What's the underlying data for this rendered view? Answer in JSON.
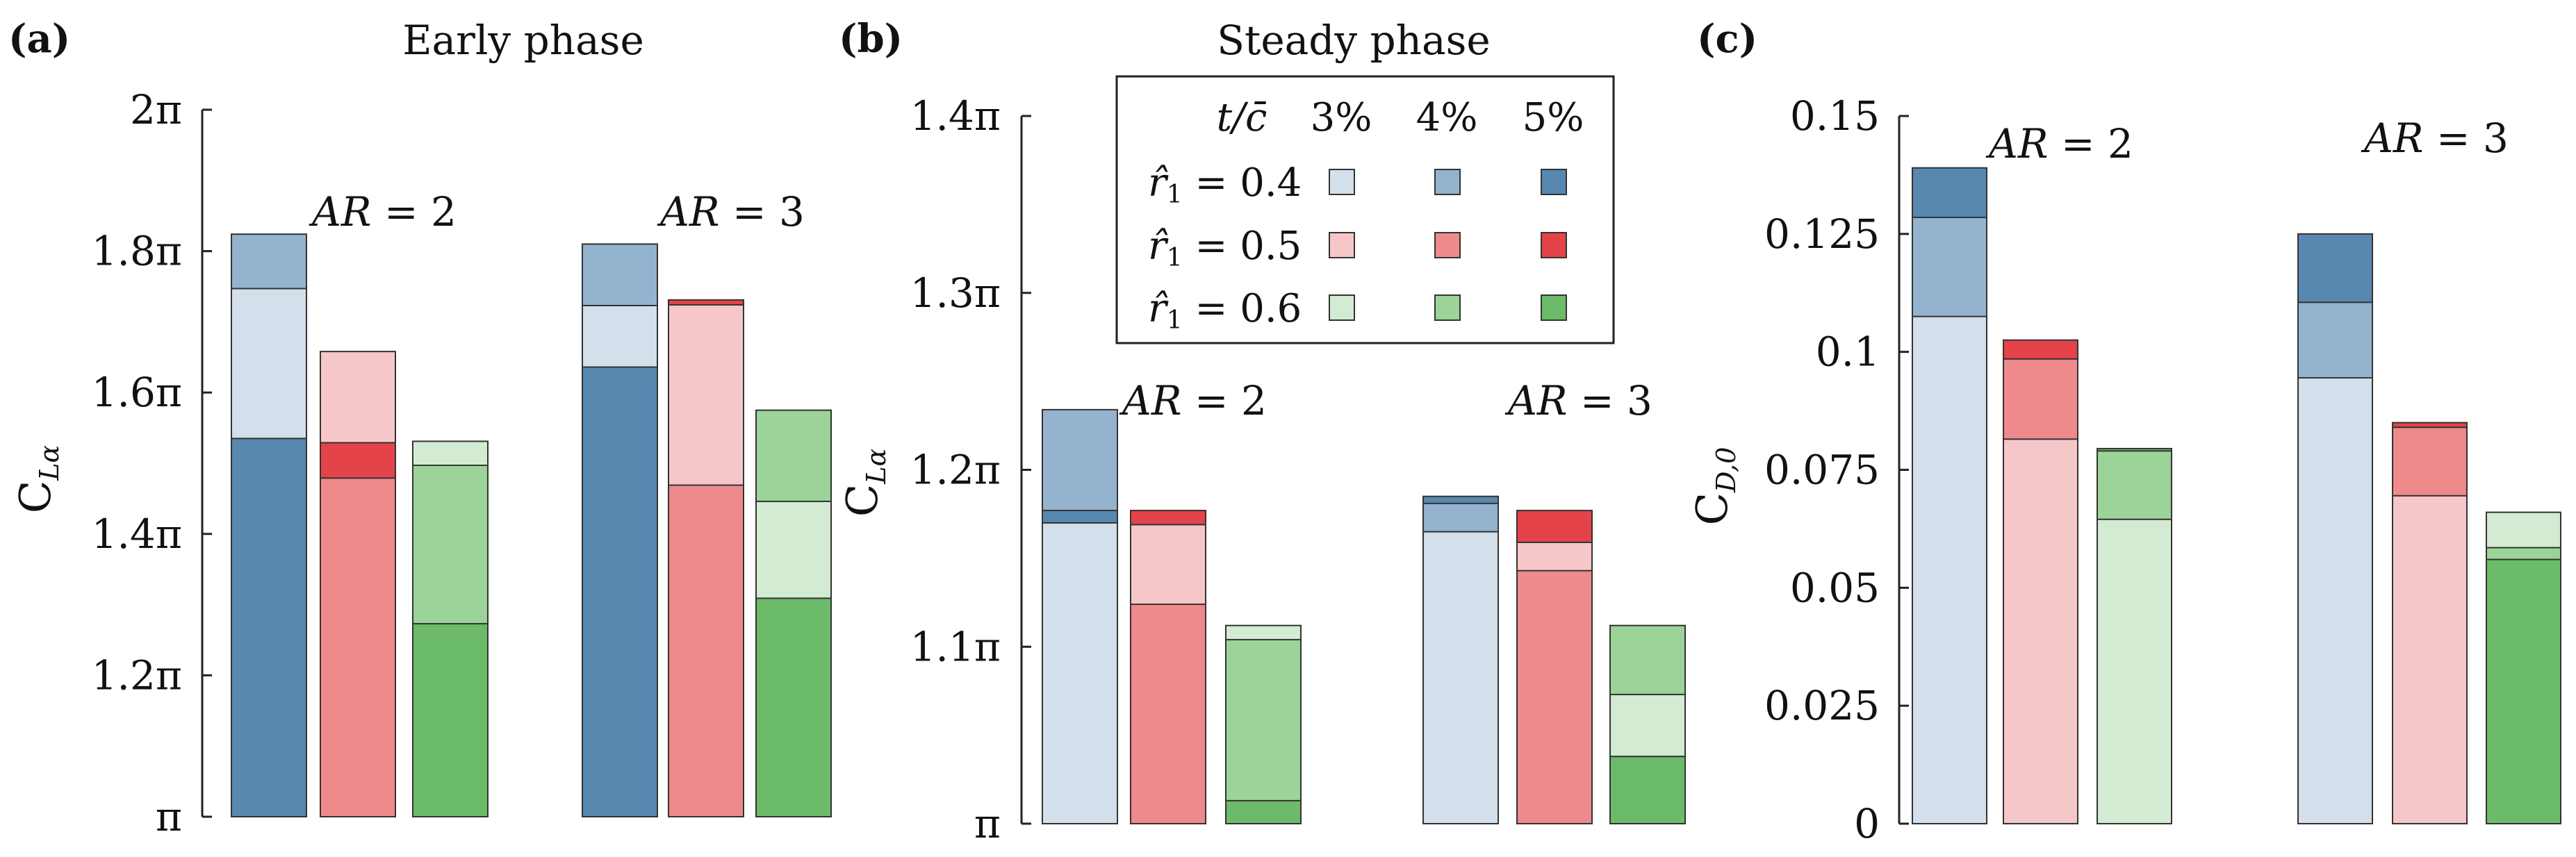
{
  "chart_data": [
    {
      "type": "bar",
      "stacking": "overlaid",
      "panel_label": "(a)",
      "title": "Early phase",
      "ylabel": "C",
      "ylabel_sub": "Lα",
      "ylim_pi": [
        1.0,
        2.0
      ],
      "yticks_pi": [
        1.0,
        1.2,
        1.4,
        1.6,
        1.8,
        2.0
      ],
      "ytick_labels": [
        "π",
        "1.2π",
        "1.4π",
        "1.6π",
        "1.8π",
        "2π"
      ],
      "groups": [
        {
          "label_italic": "AR",
          "label_rest": " = 2",
          "bars": [
            {
              "family": "blue",
              "values": [
                1.747,
                1.824,
                1.535
              ]
            },
            {
              "family": "red",
              "values": [
                1.658,
                1.479,
                1.529
              ]
            },
            {
              "family": "green",
              "values": [
                1.531,
                1.497,
                1.273
              ]
            }
          ]
        },
        {
          "label_italic": "AR",
          "label_rest": " = 3",
          "bars": [
            {
              "family": "blue",
              "values": [
                1.723,
                1.81,
                1.636
              ]
            },
            {
              "family": "red",
              "values": [
                1.724,
                1.469,
                1.731
              ]
            },
            {
              "family": "green",
              "values": [
                1.446,
                1.575,
                1.309
              ]
            }
          ]
        }
      ]
    },
    {
      "type": "bar",
      "stacking": "overlaid",
      "panel_label": "(b)",
      "title": "Steady phase",
      "ylabel": "C",
      "ylabel_sub": "Lα",
      "ylim_pi": [
        1.0,
        1.4
      ],
      "yticks_pi": [
        1.0,
        1.1,
        1.2,
        1.3,
        1.4
      ],
      "ytick_labels": [
        "π",
        "1.1π",
        "1.2π",
        "1.3π",
        "1.4π"
      ],
      "groups": [
        {
          "label_italic": "AR",
          "label_rest": " = 2",
          "bars": [
            {
              "family": "blue",
              "values": [
                1.17,
                1.234,
                1.177
              ]
            },
            {
              "family": "red",
              "values": [
                1.169,
                1.124,
                1.177
              ]
            },
            {
              "family": "green",
              "values": [
                1.112,
                1.104,
                1.013
              ]
            }
          ]
        },
        {
          "label_italic": "AR",
          "label_rest": " = 3",
          "bars": [
            {
              "family": "blue",
              "values": [
                1.165,
                1.181,
                1.185
              ]
            },
            {
              "family": "red",
              "values": [
                1.159,
                1.143,
                1.177
              ]
            },
            {
              "family": "green",
              "values": [
                1.073,
                1.112,
                1.038
              ]
            }
          ]
        }
      ]
    },
    {
      "type": "bar",
      "stacking": "overlaid",
      "panel_label": "(c)",
      "ylabel": "C",
      "ylabel_sub": "D,0",
      "ylim": [
        0,
        0.15
      ],
      "yticks": [
        0,
        0.025,
        0.05,
        0.075,
        0.1,
        0.125,
        0.15
      ],
      "ytick_labels": [
        "0",
        "0.025",
        "0.05",
        "0.075",
        "0.1",
        "0.125",
        "0.15"
      ],
      "groups": [
        {
          "label_italic": "AR",
          "label_rest": " = 2",
          "bars": [
            {
              "family": "blue",
              "values": [
                0.1075,
                0.1285,
                0.139
              ]
            },
            {
              "family": "red",
              "values": [
                0.0815,
                0.0985,
                0.1025
              ]
            },
            {
              "family": "green",
              "values": [
                0.0645,
                0.079,
                0.0795
              ]
            }
          ]
        },
        {
          "label_italic": "AR",
          "label_rest": " = 3",
          "bars": [
            {
              "family": "blue",
              "values": [
                0.0945,
                0.1105,
                0.125
              ]
            },
            {
              "family": "red",
              "values": [
                0.0695,
                0.084,
                0.085
              ]
            },
            {
              "family": "green",
              "values": [
                0.066,
                0.0585,
                0.056
              ]
            }
          ]
        }
      ]
    }
  ],
  "legend": {
    "header_italic": "t/c̄",
    "columns": [
      "3%",
      "4%",
      "5%"
    ],
    "rows": [
      {
        "label": "r̂",
        "sub": "1",
        "value": " = 0.4",
        "family": "blue"
      },
      {
        "label": "r̂",
        "sub": "1",
        "value": " = 0.5",
        "family": "red"
      },
      {
        "label": "r̂",
        "sub": "1",
        "value": " = 0.6",
        "family": "green"
      }
    ]
  },
  "colors": {
    "blue": [
      "#d3dfea",
      "#94b3cf",
      "#5888b0"
    ],
    "red": [
      "#f6c7c9",
      "#ee8a8c",
      "#e4434a"
    ],
    "green": [
      "#d3ebd2",
      "#9bd398",
      "#6bbb69"
    ],
    "axis": "#222222",
    "edge": "#333333"
  }
}
